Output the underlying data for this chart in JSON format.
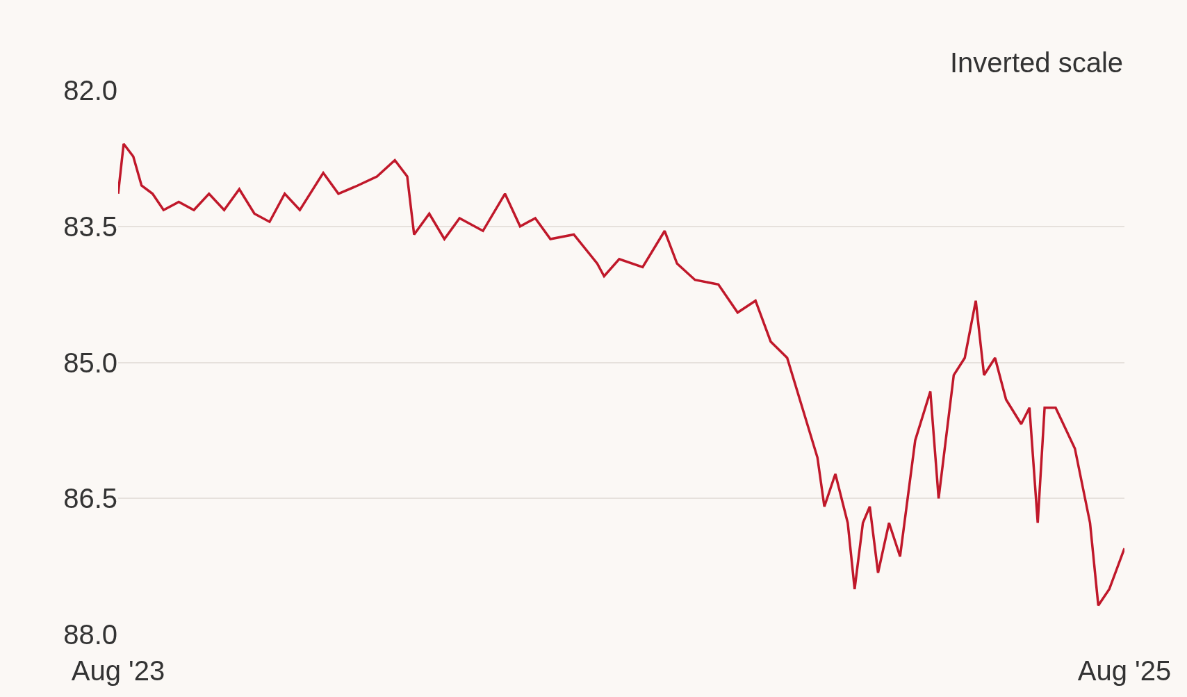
{
  "chart_data": {
    "type": "line",
    "annotations": [
      "Inverted scale"
    ],
    "x": [
      "2023-08-01",
      "2023-08-05",
      "2023-08-12",
      "2023-08-18",
      "2023-08-26",
      "2023-09-03",
      "2023-09-14",
      "2023-09-25",
      "2023-10-06",
      "2023-10-17",
      "2023-10-28",
      "2023-11-08",
      "2023-11-19",
      "2023-11-30",
      "2023-12-11",
      "2023-12-28",
      "2024-01-08",
      "2024-01-22",
      "2024-02-05",
      "2024-02-18",
      "2024-02-27",
      "2024-03-03",
      "2024-03-14",
      "2024-03-25",
      "2024-04-05",
      "2024-04-22",
      "2024-05-08",
      "2024-05-19",
      "2024-05-30",
      "2024-06-10",
      "2024-06-27",
      "2024-07-14",
      "2024-07-19",
      "2024-07-30",
      "2024-08-16",
      "2024-09-01",
      "2024-09-10",
      "2024-09-23",
      "2024-10-10",
      "2024-10-24",
      "2024-11-06",
      "2024-11-17",
      "2024-11-29",
      "2024-12-10",
      "2024-12-21",
      "2024-12-26",
      "2025-01-03",
      "2025-01-12",
      "2025-01-17",
      "2025-01-23",
      "2025-01-28",
      "2025-02-03",
      "2025-02-11",
      "2025-02-19",
      "2025-03-02",
      "2025-03-13",
      "2025-03-19",
      "2025-03-30",
      "2025-04-07",
      "2025-04-15",
      "2025-04-21",
      "2025-04-29",
      "2025-05-07",
      "2025-05-18",
      "2025-05-24",
      "2025-05-30",
      "2025-06-04",
      "2025-06-12",
      "2025-06-26",
      "2025-07-07",
      "2025-07-13",
      "2025-07-21",
      "2025-08-01"
    ],
    "series": [
      {
        "color": "#c0182a",
        "values": [
          83.14,
          82.59,
          82.73,
          83.05,
          83.14,
          83.32,
          83.23,
          83.32,
          83.14,
          83.32,
          83.09,
          83.36,
          83.45,
          83.14,
          83.32,
          82.91,
          83.14,
          83.05,
          82.95,
          82.77,
          82.95,
          83.59,
          83.36,
          83.64,
          83.41,
          83.55,
          83.14,
          83.5,
          83.41,
          83.64,
          83.59,
          83.91,
          84.05,
          83.86,
          83.95,
          83.55,
          83.91,
          84.09,
          84.14,
          84.45,
          84.32,
          84.77,
          84.95,
          85.5,
          86.05,
          86.59,
          86.23,
          86.77,
          87.5,
          86.77,
          86.59,
          87.32,
          86.77,
          87.14,
          85.86,
          85.32,
          86.5,
          85.14,
          84.95,
          84.32,
          85.14,
          84.95,
          85.41,
          85.68,
          85.5,
          86.77,
          85.5,
          85.5,
          85.95,
          86.77,
          87.68,
          87.5,
          87.05
        ]
      }
    ],
    "xlim": [
      "2023-08-01",
      "2025-08-01"
    ],
    "xticks": [
      {
        "value": "2023-08-01",
        "label": "Aug '23"
      },
      {
        "value": "2025-08-01",
        "label": "Aug '25"
      }
    ],
    "ylim": [
      88.0,
      82.0
    ],
    "yticks": [
      {
        "value": 82,
        "label": "82.0"
      },
      83.5,
      {
        "value": 85,
        "label": "85.0"
      },
      86.5,
      {
        "value": 88,
        "label": "88.0"
      }
    ],
    "grid": "y",
    "line_style": "solid",
    "marker": "none"
  }
}
